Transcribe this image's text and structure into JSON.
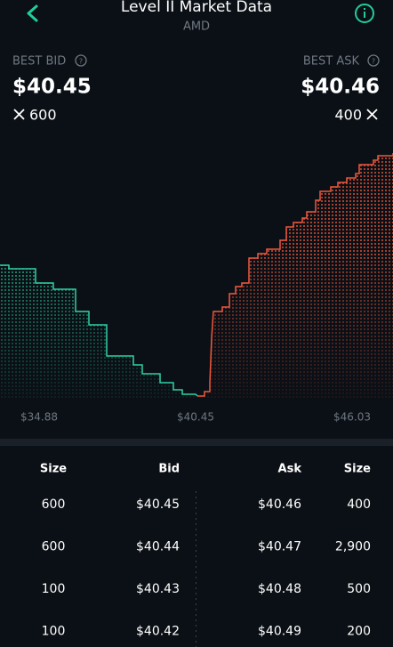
{
  "header": {
    "title": "Level II Market Data",
    "subtitle": "AMD"
  },
  "best_bid": {
    "label": "BEST BID",
    "price": "$40.45",
    "size": "600"
  },
  "best_ask": {
    "label": "BEST ASK",
    "price": "$40.46",
    "size": "400"
  },
  "depth_chart": {
    "x_labels": [
      "$34.88",
      "$40.45",
      "$46.03"
    ]
  },
  "table": {
    "columns": [
      "Size",
      "Bid",
      "Ask",
      "Size"
    ],
    "rows": [
      [
        "600",
        "$40.45",
        "$40.46",
        "400"
      ],
      [
        "600",
        "$40.44",
        "$40.47",
        "2,900"
      ],
      [
        "100",
        "$40.43",
        "$40.48",
        "500"
      ],
      [
        "100",
        "$40.42",
        "$40.49",
        "200"
      ]
    ]
  }
}
